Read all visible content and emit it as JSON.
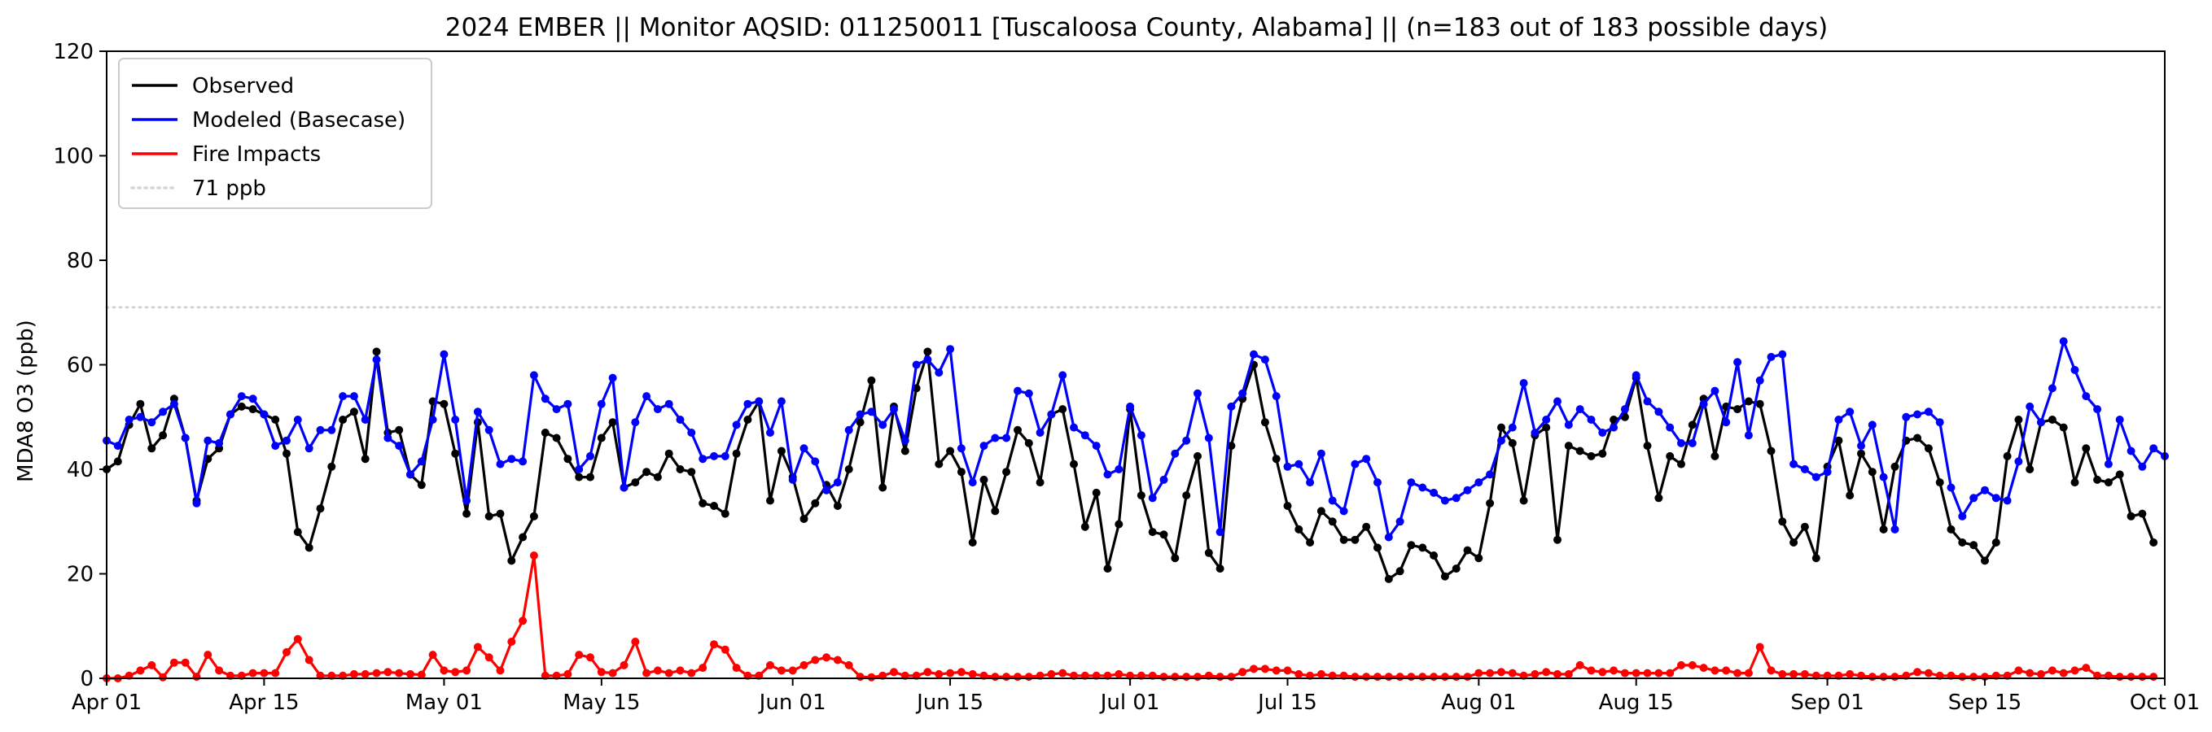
{
  "chart_data": {
    "type": "line",
    "title": "2024 EMBER || Monitor AQSID: 011250011 [Tuscaloosa County, Alabama] || (n=183 out of 183 possible days)",
    "xlabel": "",
    "ylabel": "MDA8 O3 (ppb)",
    "x_start": "2024-04-01",
    "xlim": [
      "2024-04-01",
      "2024-10-01"
    ],
    "ylim": [
      0,
      120
    ],
    "yticks": [
      0,
      20,
      40,
      60,
      80,
      100,
      120
    ],
    "xticks": [
      {
        "date": "2024-04-01",
        "label": "Apr 01"
      },
      {
        "date": "2024-04-15",
        "label": "Apr 15"
      },
      {
        "date": "2024-05-01",
        "label": "May 01"
      },
      {
        "date": "2024-05-15",
        "label": "May 15"
      },
      {
        "date": "2024-06-01",
        "label": "Jun 01"
      },
      {
        "date": "2024-06-15",
        "label": "Jun 15"
      },
      {
        "date": "2024-07-01",
        "label": "Jul 01"
      },
      {
        "date": "2024-07-15",
        "label": "Jul 15"
      },
      {
        "date": "2024-08-01",
        "label": "Aug 01"
      },
      {
        "date": "2024-08-15",
        "label": "Aug 15"
      },
      {
        "date": "2024-09-01",
        "label": "Sep 01"
      },
      {
        "date": "2024-09-15",
        "label": "Sep 15"
      },
      {
        "date": "2024-10-01",
        "label": "Oct 01"
      }
    ],
    "grid": false,
    "legend_position": "top-left",
    "reference_line": {
      "name": "71 ppb",
      "value": 71,
      "color": "#d3d3d3",
      "style": "dotted"
    },
    "series": [
      {
        "name": "Observed",
        "color": "#000000",
        "values": [
          40,
          41.5,
          48.5,
          52.5,
          44,
          46.5,
          53.5,
          46,
          34,
          42,
          44,
          50.5,
          52,
          51.5,
          50.5,
          49.5,
          43,
          28,
          25,
          32.5,
          40.5,
          49.5,
          51,
          42,
          62.5,
          47,
          47.5,
          39,
          37,
          53,
          52.5,
          43,
          31.5,
          49,
          31,
          31.5,
          22.5,
          27,
          31,
          47,
          46,
          42,
          38.5,
          38.5,
          46,
          49,
          36.5,
          37.5,
          39.5,
          38.5,
          43,
          40,
          39.5,
          33.5,
          33,
          31.5,
          43,
          49.5,
          53,
          34,
          43.5,
          38.5,
          30.5,
          33.5,
          37,
          33,
          40,
          49,
          57,
          36.5,
          52,
          43.5,
          55.5,
          62.5,
          41,
          43.5,
          39.5,
          26,
          38,
          32,
          39.5,
          47.5,
          45,
          37.5,
          50.5,
          51.5,
          41,
          29,
          35.5,
          21,
          29.5,
          51.5,
          35,
          28,
          27.5,
          23,
          35,
          42.5,
          24,
          21,
          44.5,
          53.5,
          60,
          49,
          42,
          33,
          28.5,
          26,
          32,
          30,
          26.5,
          26.5,
          29,
          25,
          19,
          20.5,
          25.5,
          25,
          23.5,
          19.5,
          21,
          24.5,
          23,
          33.5,
          48,
          45,
          34,
          46.5,
          48,
          26.5,
          44.5,
          43.5,
          42.5,
          43,
          49.5,
          50,
          57.5,
          44.5,
          34.5,
          42.5,
          41,
          48.5,
          53.5,
          42.5,
          52,
          51.5,
          53,
          52.5,
          43.5,
          30,
          26,
          29,
          23,
          40.5,
          45.5,
          35,
          43,
          39.5,
          28.5,
          40.5,
          45.5,
          46,
          44,
          37.5,
          28.5,
          26,
          25.5,
          22.5,
          26,
          42.5,
          49.5,
          40,
          49,
          49.5,
          48,
          37.5,
          44,
          38,
          37.5,
          39,
          31,
          31.5,
          26
        ]
      },
      {
        "name": "Modeled (Basecase)",
        "color": "#0000ff",
        "values": [
          45.5,
          44.5,
          49.5,
          50,
          49,
          51,
          52.5,
          46,
          33.5,
          45.5,
          45,
          50.5,
          54,
          53.5,
          50.5,
          44.5,
          45.5,
          49.5,
          44,
          47.5,
          47.5,
          54,
          54,
          49.5,
          61,
          46,
          44.5,
          39,
          41.5,
          49.5,
          62,
          49.5,
          34,
          51,
          47.5,
          41,
          42,
          41.5,
          58,
          53.5,
          51.5,
          52.5,
          40,
          42.5,
          52.5,
          57.5,
          36.5,
          49,
          54,
          51.5,
          52.5,
          49.5,
          47,
          42,
          42.5,
          42.5,
          48.5,
          52.5,
          53,
          47,
          53,
          38,
          44,
          41.5,
          36,
          37.5,
          47.5,
          50.5,
          51,
          48.5,
          51.5,
          45.5,
          60,
          61,
          58.5,
          63,
          44,
          37.5,
          44.5,
          46,
          46,
          55,
          54.5,
          47,
          50.5,
          58,
          48,
          46.5,
          44.5,
          39,
          40,
          52,
          46.5,
          34.5,
          38,
          43,
          45.5,
          54.5,
          46,
          28,
          52,
          54.5,
          62,
          61,
          54,
          40.5,
          41,
          37.5,
          43,
          34,
          32,
          41,
          42,
          37.5,
          27,
          30,
          37.5,
          36.5,
          35.5,
          34,
          34.5,
          36,
          37.5,
          39,
          45.5,
          48,
          56.5,
          47,
          49.5,
          53,
          48.5,
          51.5,
          49.5,
          47,
          48,
          51.5,
          58,
          53,
          51,
          48,
          45,
          45,
          52.5,
          55,
          49,
          60.5,
          46.5,
          57,
          61.5,
          62,
          41,
          40,
          38.5,
          39.5,
          49.5,
          51,
          44.5,
          48.5,
          38.5,
          28.5,
          50,
          50.5,
          51,
          49,
          36.5,
          31,
          34.5,
          36,
          34.5,
          34,
          41.5,
          52,
          49,
          55.5,
          64.5,
          59,
          54,
          51.5,
          41,
          49.5,
          43.5,
          40.5,
          44,
          42.5
        ]
      },
      {
        "name": "Fire Impacts",
        "color": "#ff0000",
        "values": [
          0,
          0,
          0.5,
          1.5,
          2.5,
          0.2,
          3,
          3,
          0.3,
          4.5,
          1.5,
          0.5,
          0.5,
          1,
          1,
          1,
          5,
          7.5,
          3.5,
          0.5,
          0.5,
          0.5,
          0.8,
          0.8,
          1,
          1.2,
          1,
          0.8,
          0.7,
          4.5,
          1.5,
          1.2,
          1.5,
          6,
          4,
          1.5,
          7,
          11,
          23.5,
          0.5,
          0.5,
          0.8,
          4.5,
          4,
          1.2,
          1,
          2.5,
          7,
          1,
          1.5,
          1,
          1.5,
          1,
          2,
          6.5,
          5.5,
          2,
          0.5,
          0.5,
          2.5,
          1.5,
          1.5,
          2.5,
          3.5,
          4,
          3.5,
          2.5,
          0.3,
          0.2,
          0.5,
          1.2,
          0.5,
          0.5,
          1.2,
          0.8,
          1,
          1.2,
          0.8,
          0.5,
          0.3,
          0.3,
          0.3,
          0.3,
          0.5,
          0.8,
          1,
          0.5,
          0.5,
          0.5,
          0.5,
          0.8,
          0.5,
          0.5,
          0.5,
          0.3,
          0.3,
          0.3,
          0.3,
          0.5,
          0.3,
          0.3,
          1.2,
          1.8,
          1.8,
          1.5,
          1.5,
          0.8,
          0.5,
          0.8,
          0.5,
          0.5,
          0.3,
          0.3,
          0.3,
          0.3,
          0.3,
          0.3,
          0.3,
          0.3,
          0.3,
          0.3,
          0.3,
          1,
          1,
          1.2,
          1,
          0.5,
          0.8,
          1.2,
          0.8,
          0.8,
          2.5,
          1.5,
          1.2,
          1.5,
          1,
          1,
          1,
          1,
          1,
          2.5,
          2.5,
          2,
          1.5,
          1.5,
          1,
          1,
          6,
          1.5,
          0.8,
          0.8,
          0.8,
          0.5,
          0.5,
          0.5,
          0.8,
          0.5,
          0.3,
          0.3,
          0.3,
          0.5,
          1.2,
          1,
          0.5,
          0.5,
          0.3,
          0.3,
          0.3,
          0.5,
          0.5,
          1.5,
          1,
          0.8,
          1.5,
          1,
          1.5,
          2,
          0.5,
          0.5,
          0.3,
          0.3,
          0.3,
          0.3
        ]
      }
    ]
  }
}
